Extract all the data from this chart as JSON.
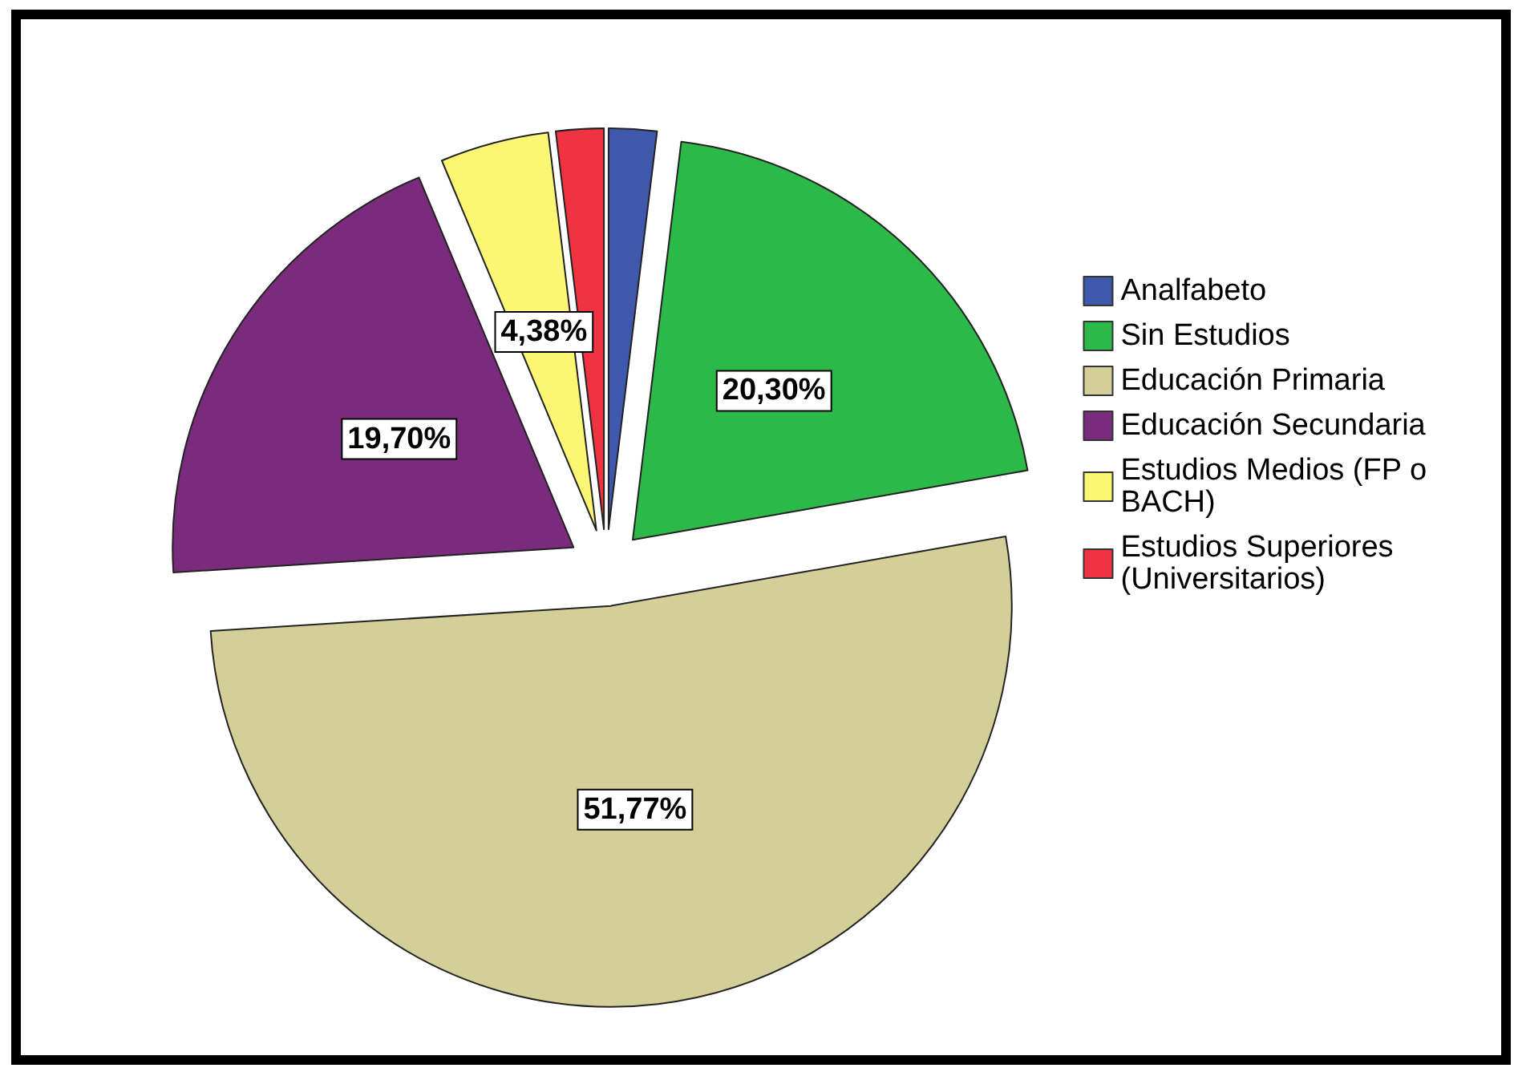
{
  "chart_data": {
    "type": "pie",
    "categories": [
      "Analfabeto",
      "Sin Estudios",
      "Educación Primaria",
      "Educación Secundaria",
      "Estudios Medios (FP o BACH)",
      "Estudios Superiores (Universitarios)"
    ],
    "values": [
      1.93,
      20.3,
      51.77,
      19.7,
      4.38,
      1.92
    ],
    "colors": [
      "#3e58ac",
      "#2db84a",
      "#d4cf98",
      "#7b2b7b",
      "#fbf774",
      "#ef3340"
    ],
    "value_labels": [
      null,
      "20,30%",
      "51,77%",
      "19,70%",
      "4,38%",
      null
    ],
    "legend": "right"
  }
}
